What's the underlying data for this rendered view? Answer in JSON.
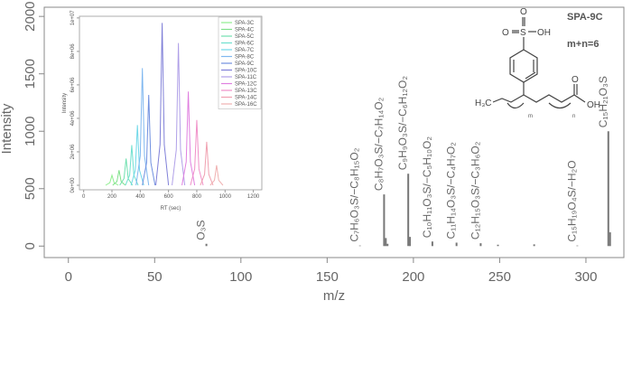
{
  "chart_data": [
    {
      "type": "bar",
      "xlabel": "m/z",
      "ylabel": "Intensity",
      "x": [
        80,
        169,
        183,
        184,
        185,
        197,
        198,
        211,
        225,
        239,
        249,
        270,
        295,
        313,
        314
      ],
      "values": [
        20,
        5,
        450,
        70,
        20,
        630,
        80,
        40,
        30,
        25,
        12,
        15,
        5,
        1000,
        120
      ],
      "value_labels": [
        "O₃S",
        "C₇H₆O₃S/−C₈H₁₅O₂",
        "C₈H₇O₃S/−C₇H₁₄O₂",
        null,
        null,
        "C₉H₉O₃S/−C₆H₁₂O₂",
        null,
        "C₁₀H₁₁O₃S/−C₅H₁₀O₂",
        "C₁₁H₁₄O₃S/−C₄H₇O₂",
        "C₁₂H₁₅O₃S/−C₃H₆O₂",
        null,
        null,
        "C₁₅H₁₉O₄S/−H₂O",
        "C₁₅H₂₁O₃S",
        null
      ],
      "color": "#777",
      "xlim": [
        -14,
        322
      ],
      "xticks": [
        0,
        50,
        100,
        150,
        200,
        250,
        300
      ],
      "ylim": [
        -100,
        2080
      ],
      "yticks": [
        0,
        500,
        1000,
        1500,
        2000
      ]
    },
    {
      "type": "line",
      "xlabel": "RT (sec)",
      "ylabel": "Intensity",
      "xlim": [
        -30,
        1260
      ],
      "xticks": [
        0,
        200,
        400,
        600,
        800,
        1000,
        1200
      ],
      "ylim": [
        -270000,
        10100000
      ],
      "yticks": [
        {
          "value": 0,
          "label": "0e+00"
        },
        {
          "value": 2000000,
          "label": "2e+06"
        },
        {
          "value": 4000000,
          "label": "4e+06"
        },
        {
          "value": 6000000,
          "label": "6e+06"
        },
        {
          "value": 8000000,
          "label": "8e+06"
        },
        {
          "value": 10000000,
          "label": "1e+07"
        }
      ],
      "legend": "top-right",
      "series": [
        {
          "name": "SPA-3C",
          "color": "#90ee90",
          "x": [
            155,
            185,
            200,
            215,
            245
          ],
          "values": [
            0,
            150000,
            600000,
            150000,
            0
          ]
        },
        {
          "name": "SPA-4C",
          "color": "#7fe08a",
          "x": [
            205,
            235,
            250,
            265,
            295
          ],
          "values": [
            0,
            225000,
            900000,
            225000,
            0
          ]
        },
        {
          "name": "SPA-5C",
          "color": "#70e0b0",
          "x": [
            255,
            285,
            300,
            315,
            345
          ],
          "values": [
            0,
            400000,
            1600000,
            400000,
            0
          ]
        },
        {
          "name": "SPA-6C",
          "color": "#70e0d0",
          "x": [
            295,
            325,
            340,
            355,
            385
          ],
          "values": [
            0,
            600000,
            2400000,
            600000,
            0
          ]
        },
        {
          "name": "SPA-7C",
          "color": "#70d8e8",
          "x": [
            335,
            365,
            380,
            395,
            425
          ],
          "values": [
            0,
            900000,
            3600000,
            900000,
            0
          ]
        },
        {
          "name": "SPA-8C",
          "color": "#80b8f0",
          "x": [
            370,
            400,
            415,
            430,
            460
          ],
          "values": [
            0,
            1750000,
            7000000,
            1750000,
            0
          ]
        },
        {
          "name": "SPA-9C",
          "color": "#7090e0",
          "x": [
            415,
            445,
            460,
            475,
            505
          ],
          "values": [
            0,
            1350000,
            5400000,
            1350000,
            0
          ]
        },
        {
          "name": "SPA-10C",
          "color": "#8080d8",
          "x": [
            510,
            540,
            555,
            570,
            600
          ],
          "values": [
            0,
            2425000,
            9700000,
            2425000,
            0
          ]
        },
        {
          "name": "SPA-11C",
          "color": "#b0a0e8",
          "x": [
            625,
            655,
            670,
            685,
            715
          ],
          "values": [
            0,
            2125000,
            8500000,
            2125000,
            0
          ]
        },
        {
          "name": "SPA-12C",
          "color": "#e080e0",
          "x": [
            695,
            725,
            740,
            755,
            785
          ],
          "values": [
            0,
            1400000,
            5600000,
            1400000,
            0
          ]
        },
        {
          "name": "SPA-13C",
          "color": "#f090c8",
          "x": [
            755,
            785,
            800,
            815,
            845
          ],
          "values": [
            0,
            975000,
            3900000,
            975000,
            0
          ]
        },
        {
          "name": "SPA-14C",
          "color": "#f0a0b0",
          "x": [
            825,
            855,
            870,
            885,
            915
          ],
          "values": [
            0,
            650000,
            2600000,
            650000,
            0
          ]
        },
        {
          "name": "SPA-16C",
          "color": "#f0b0b0",
          "x": [
            895,
            925,
            940,
            955,
            985
          ],
          "values": [
            0,
            300000,
            1200000,
            300000,
            0
          ]
        }
      ]
    }
  ],
  "structure": {
    "title": "SPA-9C",
    "note": "m+n=6",
    "labels": [
      "O",
      "O",
      "S",
      "OH",
      "H₃C",
      "m",
      "n",
      "O",
      "OH"
    ]
  }
}
